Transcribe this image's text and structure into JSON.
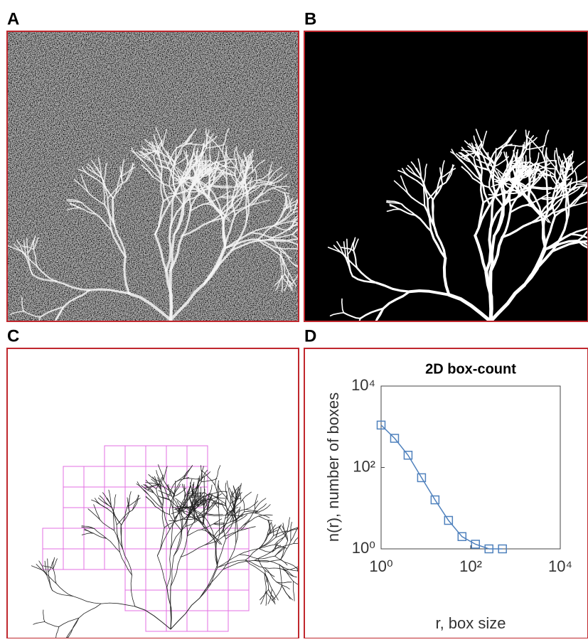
{
  "panel_labels": [
    "A",
    "B",
    "C",
    "D"
  ],
  "chart_data": {
    "type": "line",
    "title": "2D box-count",
    "x_label": "r, box size",
    "y_label": "n(r),  number of boxes",
    "log_x": true,
    "log_y": true,
    "marker": "square",
    "x": [
      1,
      2,
      4,
      8,
      16,
      32,
      64,
      128,
      256,
      512
    ],
    "series": [
      {
        "color": "#4f81bd",
        "values": [
          1100,
          520,
          200,
          56,
          16,
          5,
          2,
          1.3,
          1,
          1
        ]
      }
    ],
    "xlim": [
      1,
      10000
    ],
    "ylim": [
      1,
      10000
    ],
    "xticks": [
      {
        "value": 1,
        "label": "10⁰"
      },
      {
        "value": 100,
        "label": "10²"
      },
      {
        "value": 10000,
        "label": "10⁴"
      }
    ],
    "yticks": [
      {
        "value": 1,
        "label": "10⁰"
      },
      {
        "value": 100,
        "label": "10²"
      },
      {
        "value": 10000,
        "label": "10⁴"
      }
    ]
  }
}
